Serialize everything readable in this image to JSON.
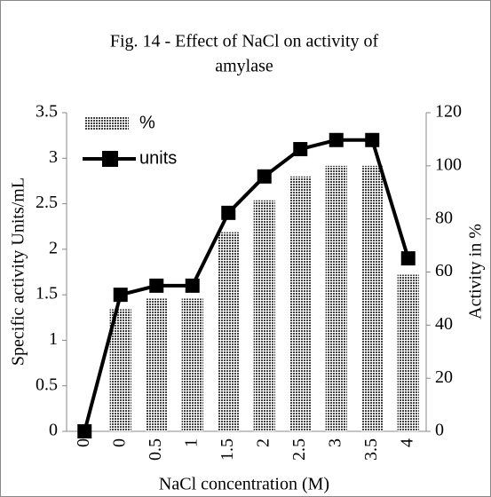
{
  "chart_data": {
    "type": "bar_line",
    "title": "Fig. 14 - Effect of NaCl on activity of amylase",
    "x_label": "NaCl concentration (M)",
    "y_label": "Specific activity Units/mL",
    "y2_label": "Activity in %",
    "categories": [
      "0",
      "0",
      "0.5",
      "1",
      "1.5",
      "2",
      "2.5",
      "3",
      "3.5",
      "4"
    ],
    "series": [
      {
        "name": "%",
        "type": "bar",
        "axis": "y2",
        "color": "#444444",
        "values": [
          null,
          46,
          50,
          50,
          75,
          87,
          96,
          100,
          100,
          59
        ]
      },
      {
        "name": "units",
        "type": "line",
        "axis": "y",
        "color": "#000000",
        "values": [
          0,
          1.5,
          1.6,
          1.6,
          2.4,
          2.8,
          3.1,
          3.2,
          3.2,
          1.9
        ]
      }
    ],
    "ylim": [
      0,
      3.5
    ],
    "yticks": [
      0,
      0.5,
      1,
      1.5,
      2,
      2.5,
      3,
      3.5
    ],
    "y2lim": [
      0,
      120
    ],
    "y2ticks": [
      0,
      20,
      40,
      60,
      80,
      100,
      120
    ],
    "legend": "top-left",
    "grid": false
  }
}
